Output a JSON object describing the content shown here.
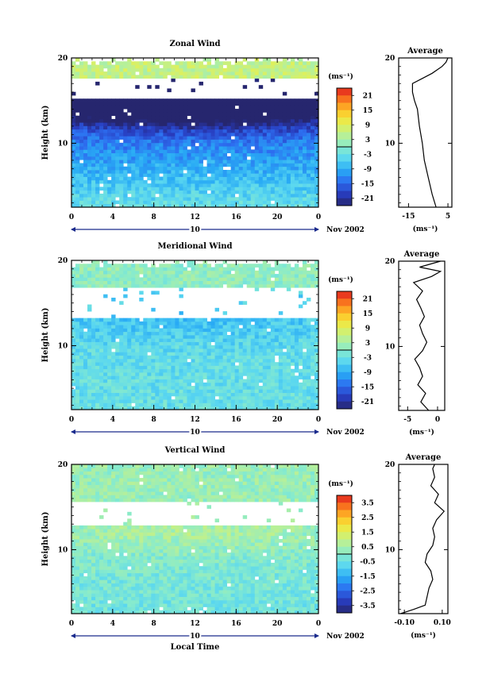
{
  "chart_data": [
    {
      "type": "heatmap",
      "title": "Zonal Wind",
      "ylabel": "Height (km)",
      "xlabel": "",
      "date_label": "Nov 2002",
      "day_label": "10",
      "x_ticks": [
        "0",
        "4",
        "8",
        "12",
        "16",
        "20",
        "0"
      ],
      "xlim": [
        0,
        24
      ],
      "y_ticks": [
        "20",
        "10"
      ],
      "ylim": [
        2.5,
        20
      ],
      "colorbar": {
        "unit": "(ms⁻¹)",
        "labels": [
          "21",
          "15",
          "9",
          "3",
          "-3",
          "-9",
          "-15",
          "-21"
        ],
        "range": [
          -24,
          24
        ]
      },
      "field": {
        "surface_value": -3,
        "slope": -1.3,
        "jet_value": -21,
        "jet_center_km": 14.5,
        "upper_value": 6,
        "gap_km": [
          15.3,
          17.5
        ],
        "data_top_km": 19.3
      },
      "average": {
        "title": "Average",
        "xlabel": "(ms⁻¹)",
        "x_ticks": [
          "-15",
          "5"
        ],
        "xlim": [
          -20,
          7
        ],
        "heights": [
          2.5,
          4,
          6,
          8,
          10,
          12,
          14,
          15,
          16,
          17,
          17.6,
          18.2,
          19,
          19.5,
          20
        ],
        "values": [
          -1,
          -3,
          -5,
          -7,
          -8,
          -9.5,
          -10.5,
          -12,
          -13,
          -13,
          -8,
          -3,
          2,
          4,
          5
        ]
      }
    },
    {
      "type": "heatmap",
      "title": "Meridional Wind",
      "ylabel": "Height (km)",
      "xlabel": "",
      "date_label": "Nov 2002",
      "day_label": "10",
      "x_ticks": [
        "0",
        "4",
        "8",
        "12",
        "16",
        "20",
        "0"
      ],
      "xlim": [
        0,
        24
      ],
      "y_ticks": [
        "20",
        "10"
      ],
      "ylim": [
        2.5,
        20
      ],
      "colorbar": {
        "unit": "(ms⁻¹)",
        "labels": [
          "21",
          "15",
          "9",
          "3",
          "-3",
          "-9",
          "-15",
          "-21"
        ],
        "range": [
          -24,
          24
        ]
      },
      "field": {
        "surface_value": -3,
        "slope": -0.1,
        "jet_value": -6,
        "jet_center_km": 13,
        "upper_value": 1,
        "gap_km": [
          13.3,
          16.8
        ],
        "data_top_km": 19.3
      },
      "average": {
        "title": "Average",
        "xlabel": "(ms⁻¹)",
        "x_ticks": [
          "-5",
          "0"
        ],
        "xlim": [
          -6.5,
          1.2
        ],
        "heights": [
          2.5,
          3.5,
          4.5,
          5.5,
          6.5,
          7.5,
          8.5,
          9.5,
          10.5,
          11.5,
          12.5,
          13.5,
          14.5,
          15.5,
          16.5,
          17.5,
          18.2,
          18.8,
          19.3,
          20
        ],
        "values": [
          -1.5,
          -2.8,
          -2,
          -3.3,
          -2.5,
          -3,
          -3.8,
          -2.5,
          -1.8,
          -2.5,
          -3,
          -2.2,
          -2.8,
          -3.5,
          -2.5,
          -4,
          -1,
          0.5,
          -3,
          0.5
        ]
      }
    },
    {
      "type": "heatmap",
      "title": "Vertical Wind",
      "ylabel": "Height (km)",
      "xlabel": "Local Time",
      "date_label": "Nov 2002",
      "day_label": "10",
      "x_ticks": [
        "0",
        "4",
        "8",
        "12",
        "16",
        "20",
        "0"
      ],
      "xlim": [
        0,
        24
      ],
      "y_ticks": [
        "20",
        "10"
      ],
      "ylim": [
        2.5,
        20
      ],
      "colorbar": {
        "unit": "(ms⁻¹)",
        "labels": [
          "3.5",
          "2.5",
          "1.5",
          "0.5",
          "-0.5",
          "-1.5",
          "-2.5",
          "-3.5"
        ],
        "range": [
          -4,
          4
        ]
      },
      "field": {
        "surface_value": -0.4,
        "slope": 0.04,
        "jet_value": 0.2,
        "jet_center_km": 12,
        "upper_value": 0.3,
        "gap_km": [
          12.8,
          15.5
        ],
        "data_top_km": 19.8
      },
      "average": {
        "title": "Average",
        "xlabel": "(ms⁻¹)",
        "x_ticks": [
          "-0.10",
          "0.10"
        ],
        "xlim": [
          -0.13,
          0.13
        ],
        "heights": [
          2.5,
          3,
          3.5,
          4.5,
          5.5,
          6.5,
          7.5,
          8.5,
          9.5,
          10.5,
          11.5,
          12.5,
          13.5,
          14.5,
          15.5,
          16.5,
          17.5,
          18.5,
          19.5,
          20
        ],
        "values": [
          -0.12,
          -0.05,
          0.01,
          0.02,
          0.03,
          0.05,
          0.04,
          0.01,
          0.02,
          0.05,
          0.06,
          0.05,
          0.07,
          0.11,
          0.06,
          0.08,
          0.04,
          0.06,
          0.05,
          0.06
        ]
      }
    }
  ]
}
